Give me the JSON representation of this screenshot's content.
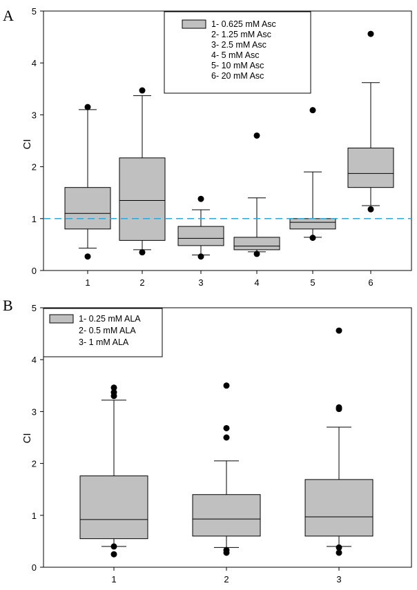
{
  "chart_data": [
    {
      "type": "box",
      "panel_label": "A",
      "ylabel": "CI",
      "ylim": [
        0,
        5
      ],
      "yticks": [
        0,
        1,
        2,
        3,
        4,
        5
      ],
      "categories": [
        "1",
        "2",
        "3",
        "4",
        "5",
        "6"
      ],
      "reference_line": 1,
      "legend": {
        "entries": [
          "1- 0.625 mM Asc",
          "2- 1.25 mM Asc",
          "3- 2.5 mM Asc",
          "4- 5 mM Asc",
          "5- 10 mM Asc",
          "6- 20 mM Asc"
        ]
      },
      "boxes": [
        {
          "category": "1",
          "whisker_low": 0.43,
          "q1": 0.8,
          "median": 1.1,
          "q3": 1.6,
          "whisker_high": 3.1,
          "outliers": [
            0.27,
            3.15
          ]
        },
        {
          "category": "2",
          "whisker_low": 0.4,
          "q1": 0.58,
          "median": 1.35,
          "q3": 2.17,
          "whisker_high": 3.37,
          "outliers": [
            0.35,
            3.47
          ]
        },
        {
          "category": "3",
          "whisker_low": 0.3,
          "q1": 0.48,
          "median": 0.62,
          "q3": 0.85,
          "whisker_high": 1.17,
          "outliers": [
            0.27,
            1.38
          ]
        },
        {
          "category": "4",
          "whisker_low": 0.36,
          "q1": 0.4,
          "median": 0.47,
          "q3": 0.64,
          "whisker_high": 1.4,
          "outliers": [
            0.32,
            2.6
          ]
        },
        {
          "category": "5",
          "whisker_low": 0.64,
          "q1": 0.8,
          "median": 0.93,
          "q3": 1.0,
          "whisker_high": 1.9,
          "outliers": [
            0.63,
            3.09
          ]
        },
        {
          "category": "6",
          "whisker_low": 1.25,
          "q1": 1.6,
          "median": 1.87,
          "q3": 2.36,
          "whisker_high": 3.62,
          "outliers": [
            1.18,
            4.56
          ]
        }
      ]
    },
    {
      "type": "box",
      "panel_label": "B",
      "ylabel": "CI",
      "ylim": [
        0,
        5
      ],
      "yticks": [
        0,
        1,
        2,
        3,
        4,
        5
      ],
      "categories": [
        "1",
        "2",
        "3"
      ],
      "legend": {
        "entries": [
          "1- 0.25 mM ALA",
          "2- 0.5 mM ALA",
          "3- 1 mM ALA"
        ]
      },
      "boxes": [
        {
          "category": "1",
          "whisker_low": 0.4,
          "q1": 0.55,
          "median": 0.92,
          "q3": 1.76,
          "whisker_high": 3.22,
          "outliers": [
            0.25,
            0.4,
            3.3,
            3.37,
            3.46
          ]
        },
        {
          "category": "2",
          "whisker_low": 0.38,
          "q1": 0.6,
          "median": 0.93,
          "q3": 1.4,
          "whisker_high": 2.05,
          "outliers": [
            0.28,
            0.33,
            2.5,
            2.68,
            3.5
          ]
        },
        {
          "category": "3",
          "whisker_low": 0.4,
          "q1": 0.6,
          "median": 0.97,
          "q3": 1.69,
          "whisker_high": 2.7,
          "outliers": [
            0.28,
            0.38,
            3.05,
            3.08,
            4.56
          ]
        }
      ]
    }
  ]
}
